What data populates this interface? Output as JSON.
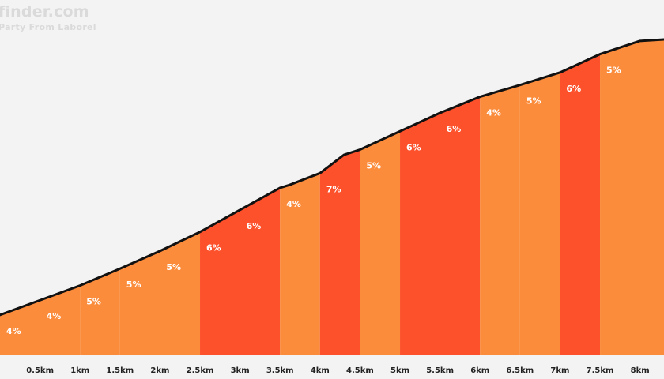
{
  "watermark": {
    "brand": "finder.com",
    "subtitle": "Party From Laborel"
  },
  "colors": {
    "background": "#f3f3f3",
    "light_orange": "#fb8c3c",
    "red_orange": "#fd512c",
    "profile_line": "#111111"
  },
  "chart_data": {
    "type": "area",
    "title": "",
    "xlabel": "",
    "ylabel": "",
    "x_unit": "km",
    "xlim": [
      0,
      8.3
    ],
    "x_ticks": [
      {
        "value": 0.5,
        "label": "0.5km"
      },
      {
        "value": 1,
        "label": "1km"
      },
      {
        "value": 1.5,
        "label": "1.5km"
      },
      {
        "value": 2,
        "label": "2km"
      },
      {
        "value": 2.5,
        "label": "2.5km"
      },
      {
        "value": 3,
        "label": "3km"
      },
      {
        "value": 3.5,
        "label": "3.5km"
      },
      {
        "value": 4,
        "label": "4km"
      },
      {
        "value": 4.5,
        "label": "4.5km"
      },
      {
        "value": 5,
        "label": "5km"
      },
      {
        "value": 5.5,
        "label": "5.5km"
      },
      {
        "value": 6,
        "label": "6km"
      },
      {
        "value": 6.5,
        "label": "6.5km"
      },
      {
        "value": 7,
        "label": "7km"
      },
      {
        "value": 7.5,
        "label": "7.5km"
      },
      {
        "value": 8,
        "label": "8km"
      }
    ],
    "ylim": [
      0,
      430
    ],
    "segments": [
      {
        "x0": 0.0,
        "x1": 0.5,
        "gradient": 4,
        "label": "4%",
        "color": "light_orange"
      },
      {
        "x0": 0.5,
        "x1": 1.0,
        "gradient": 4,
        "label": "4%",
        "color": "light_orange"
      },
      {
        "x0": 1.0,
        "x1": 1.5,
        "gradient": 5,
        "label": "5%",
        "color": "light_orange"
      },
      {
        "x0": 1.5,
        "x1": 2.0,
        "gradient": 5,
        "label": "5%",
        "color": "light_orange"
      },
      {
        "x0": 2.0,
        "x1": 2.5,
        "gradient": 5,
        "label": "5%",
        "color": "light_orange"
      },
      {
        "x0": 2.5,
        "x1": 3.0,
        "gradient": 6,
        "label": "6%",
        "color": "red_orange"
      },
      {
        "x0": 3.0,
        "x1": 3.5,
        "gradient": 6,
        "label": "6%",
        "color": "red_orange"
      },
      {
        "x0": 3.5,
        "x1": 4.0,
        "gradient": 4,
        "label": "4%",
        "color": "light_orange"
      },
      {
        "x0": 4.0,
        "x1": 4.5,
        "gradient": 7,
        "label": "7%",
        "color": "red_orange"
      },
      {
        "x0": 4.5,
        "x1": 5.0,
        "gradient": 5,
        "label": "5%",
        "color": "light_orange"
      },
      {
        "x0": 5.0,
        "x1": 5.5,
        "gradient": 6,
        "label": "6%",
        "color": "red_orange"
      },
      {
        "x0": 5.5,
        "x1": 6.0,
        "gradient": 6,
        "label": "6%",
        "color": "red_orange"
      },
      {
        "x0": 6.0,
        "x1": 6.5,
        "gradient": 4,
        "label": "4%",
        "color": "light_orange"
      },
      {
        "x0": 6.5,
        "x1": 7.0,
        "gradient": 5,
        "label": "5%",
        "color": "light_orange"
      },
      {
        "x0": 7.0,
        "x1": 7.5,
        "gradient": 6,
        "label": "6%",
        "color": "red_orange"
      },
      {
        "x0": 7.5,
        "x1": 8.3,
        "gradient": 5,
        "label": "5%",
        "color": "light_orange"
      }
    ],
    "profile": [
      [
        0.0,
        55
      ],
      [
        0.5,
        75
      ],
      [
        1.0,
        95
      ],
      [
        1.5,
        118
      ],
      [
        2.0,
        142
      ],
      [
        2.5,
        168
      ],
      [
        3.0,
        198
      ],
      [
        3.5,
        228
      ],
      [
        3.62,
        232
      ],
      [
        4.0,
        248
      ],
      [
        4.3,
        273
      ],
      [
        4.5,
        280
      ],
      [
        5.0,
        305
      ],
      [
        5.5,
        330
      ],
      [
        6.0,
        352
      ],
      [
        6.5,
        368
      ],
      [
        7.0,
        385
      ],
      [
        7.5,
        410
      ],
      [
        8.0,
        428
      ],
      [
        8.3,
        430
      ]
    ]
  }
}
